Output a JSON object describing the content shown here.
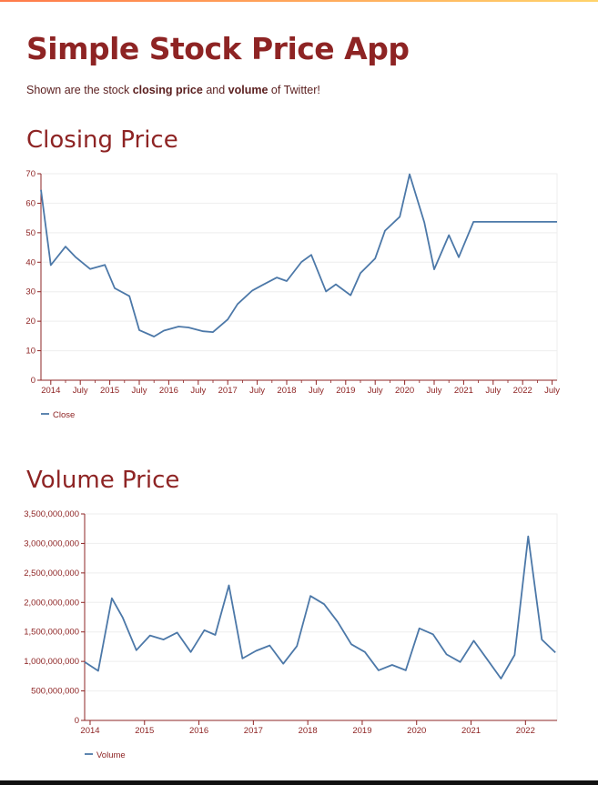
{
  "app": {
    "title": "Simple Stock Price App",
    "description_prefix": "Shown are the stock ",
    "description_bold1": "closing price",
    "description_mid": " and ",
    "description_bold2": "volume",
    "description_suffix": " of Twitter!"
  },
  "colors": {
    "heading": "#8e2424",
    "line": "#4c78a8",
    "grid": "#eeeeee",
    "axis": "#8e2424"
  },
  "sections": {
    "closing_title": "Closing Price",
    "volume_title": "Volume Price"
  },
  "chart_data": [
    {
      "type": "line",
      "title": "",
      "xlabel": "",
      "ylabel": "",
      "x": [
        "2013-11",
        "2014-01",
        "2014-04",
        "2014-06",
        "2014-09",
        "2014-12",
        "2015-02",
        "2015-05",
        "2015-07",
        "2015-10",
        "2015-12",
        "2016-03",
        "2016-05",
        "2016-08",
        "2016-10",
        "2017-01",
        "2017-03",
        "2017-06",
        "2017-08",
        "2017-11",
        "2018-01",
        "2018-04",
        "2018-06",
        "2018-09",
        "2018-11",
        "2019-02",
        "2019-04",
        "2019-07",
        "2019-09",
        "2019-12",
        "2020-02",
        "2020-05",
        "2020-07",
        "2020-10",
        "2020-12",
        "2021-03",
        "2021-05",
        "2021-08",
        "2021-10",
        "2022-01",
        "2022-03",
        "2022-06",
        "2022-08"
      ],
      "series": [
        {
          "name": "Close",
          "values": [
            64.5,
            39.0,
            45.3,
            41.8,
            37.7,
            39.1,
            31.2,
            28.5,
            17.0,
            14.8,
            16.8,
            18.2,
            17.9,
            16.6,
            16.3,
            20.6,
            25.8,
            30.4,
            32.2,
            34.8,
            33.6,
            40.1,
            42.5,
            30.1,
            32.5,
            28.8,
            36.3,
            41.3,
            50.7,
            55.4,
            69.8,
            53.5,
            37.6,
            49.2,
            41.7,
            53.7,
            53.7,
            53.7,
            53.7,
            53.7,
            53.7,
            53.7,
            53.7
          ]
        }
      ],
      "ylim": [
        0,
        70
      ],
      "yticks": [
        "0",
        "10",
        "20",
        "30",
        "40",
        "50",
        "60",
        "70"
      ],
      "xticks": [
        "2014",
        "July",
        "2015",
        "July",
        "2016",
        "July",
        "2017",
        "July",
        "2018",
        "July",
        "2019",
        "July",
        "2020",
        "July",
        "2021",
        "July",
        "2022",
        "July"
      ],
      "grid": true,
      "legend": "bottom-left"
    },
    {
      "type": "line",
      "title": "",
      "xlabel": "",
      "ylabel": "",
      "x": [
        2013.9,
        2014.15,
        2014.4,
        2014.6,
        2014.85,
        2015.1,
        2015.35,
        2015.6,
        2015.85,
        2016.1,
        2016.3,
        2016.55,
        2016.8,
        2017.05,
        2017.3,
        2017.55,
        2017.8,
        2018.05,
        2018.3,
        2018.55,
        2018.8,
        2019.05,
        2019.3,
        2019.55,
        2019.8,
        2020.05,
        2020.3,
        2020.55,
        2020.8,
        2021.05,
        2021.3,
        2021.55,
        2021.8,
        2022.05,
        2022.3,
        2022.55
      ],
      "series": [
        {
          "name": "Volume",
          "values": [
            990000000,
            840000000,
            2070000000,
            1740000000,
            1190000000,
            1440000000,
            1370000000,
            1490000000,
            1160000000,
            1530000000,
            1450000000,
            2290000000,
            1050000000,
            1180000000,
            1270000000,
            960000000,
            1260000000,
            2110000000,
            1970000000,
            1670000000,
            1290000000,
            1160000000,
            850000000,
            940000000,
            850000000,
            1560000000,
            1460000000,
            1120000000,
            990000000,
            1350000000,
            1030000000,
            710000000,
            1110000000,
            3120000000,
            1370000000,
            1150000000
          ]
        }
      ],
      "ylim": [
        0,
        3500000000
      ],
      "yticks": [
        "0",
        "500,000,000",
        "1,000,000,000",
        "1,500,000,000",
        "2,000,000,000",
        "2,500,000,000",
        "3,000,000,000",
        "3,500,000,000"
      ],
      "xticks": [
        "2014",
        "2015",
        "2016",
        "2017",
        "2018",
        "2019",
        "2020",
        "2021",
        "2022"
      ],
      "grid": true,
      "legend": "bottom-left"
    }
  ]
}
